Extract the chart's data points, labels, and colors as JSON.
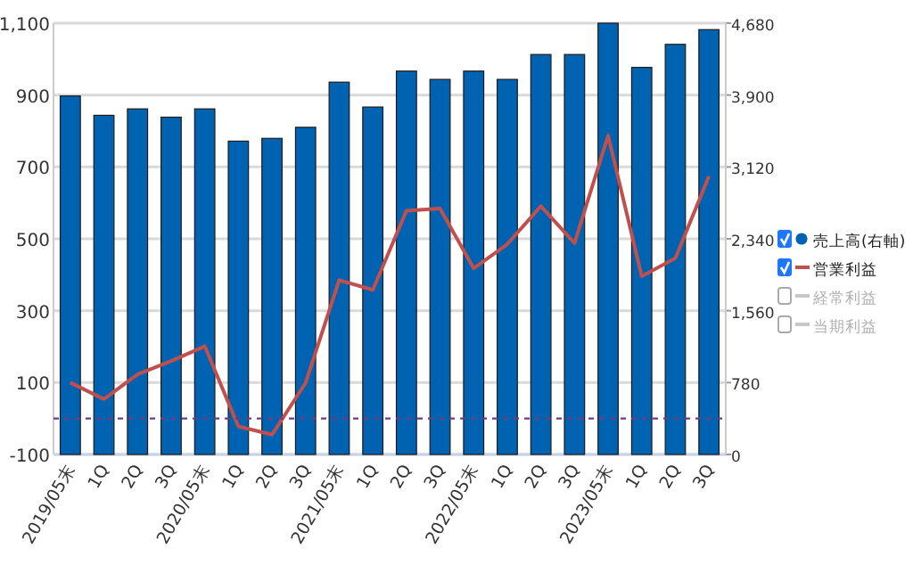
{
  "chart_data": {
    "type": "bar",
    "categories": [
      "2019/05末",
      "1Q",
      "2Q",
      "3Q",
      "2020/05末",
      "1Q",
      "2Q",
      "3Q",
      "2021/05末",
      "1Q",
      "2Q",
      "3Q",
      "2022/05末",
      "1Q",
      "2Q",
      "3Q",
      "2023/05末",
      "1Q",
      "2Q",
      "3Q"
    ],
    "series": [
      {
        "name": "売上高(右軸)",
        "axis": "y2",
        "color": "#0063b1",
        "values": [
          3890,
          3680,
          3750,
          3660,
          3750,
          3400,
          3430,
          3550,
          4040,
          3770,
          4160,
          4070,
          4160,
          4070,
          4340,
          4340,
          4680,
          4200,
          4450,
          4610
        ]
      },
      {
        "name": "営業利益",
        "type": "line",
        "color": "#c0504d",
        "values": [
          100,
          54,
          123,
          160,
          201,
          -22,
          -45,
          99,
          385,
          358,
          578,
          584,
          418,
          485,
          591,
          488,
          787,
          396,
          446,
          674
        ]
      },
      {
        "name": "経常利益",
        "type": "line",
        "color": "#c8c8c8",
        "values": [
          null,
          null,
          null,
          null,
          null,
          null,
          null,
          null,
          null,
          null,
          null,
          null,
          null,
          null,
          null,
          null,
          null,
          null,
          null,
          null
        ]
      },
      {
        "name": "当期利益",
        "type": "line",
        "color": "#c8c8c8",
        "values": [
          null,
          null,
          null,
          null,
          null,
          null,
          null,
          null,
          null,
          null,
          null,
          null,
          null,
          null,
          null,
          null,
          null,
          null,
          null,
          null
        ]
      }
    ],
    "ylim": [
      -100,
      1100
    ],
    "yticks": [
      -100,
      100,
      300,
      500,
      700,
      900,
      {
        "value": 1100,
        "label": "1,100"
      }
    ],
    "y2lim": [
      0,
      4680
    ],
    "y2ticks": [
      0,
      780,
      {
        "value": 1560,
        "label": "1,560"
      },
      {
        "value": 2340,
        "label": "2,340"
      },
      {
        "value": 3120,
        "label": "3,120"
      },
      {
        "value": 3900,
        "label": "3,900"
      },
      {
        "value": 4680,
        "label": "4,680"
      }
    ],
    "ref_lines": [
      {
        "axis": "y",
        "value": 0,
        "color": "#6b3f7f",
        "line_style": "dashed"
      }
    ],
    "grid": "y",
    "legend": "right",
    "marker": "none",
    "line_style": "solid"
  }
}
